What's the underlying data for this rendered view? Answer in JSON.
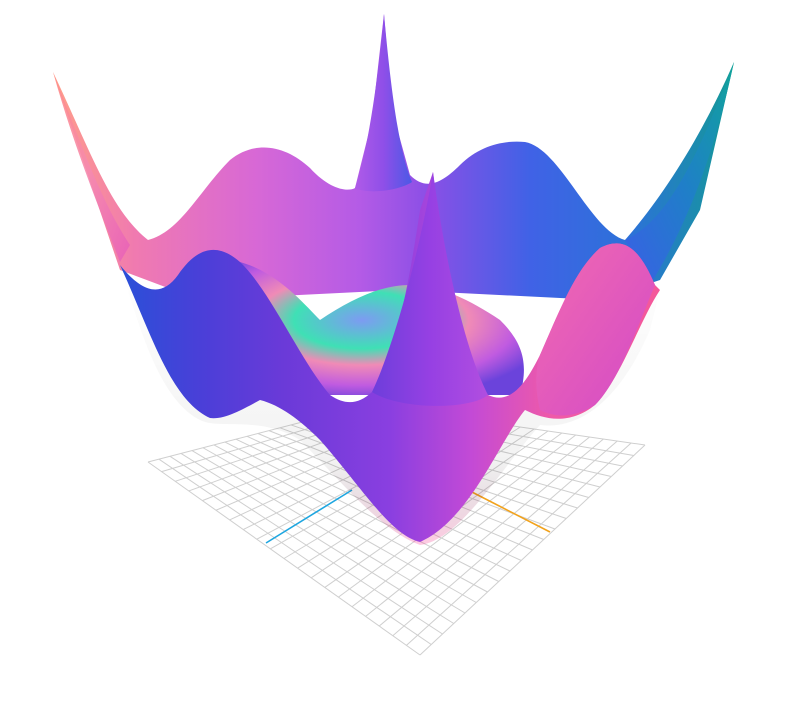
{
  "scene": {
    "kind": "3d-surface-plot",
    "grid_divisions": 20,
    "background": "#ffffff",
    "grid_color": "#cfcfcf",
    "axis_colors": {
      "x": "#f2a21b",
      "z": "#1ea6e0"
    },
    "surface_palette": [
      "#ff9a8b",
      "#e86ab8",
      "#b15be6",
      "#7b3fe0",
      "#3d5ee8",
      "#16a3a6",
      "#3ee0b0"
    ]
  }
}
